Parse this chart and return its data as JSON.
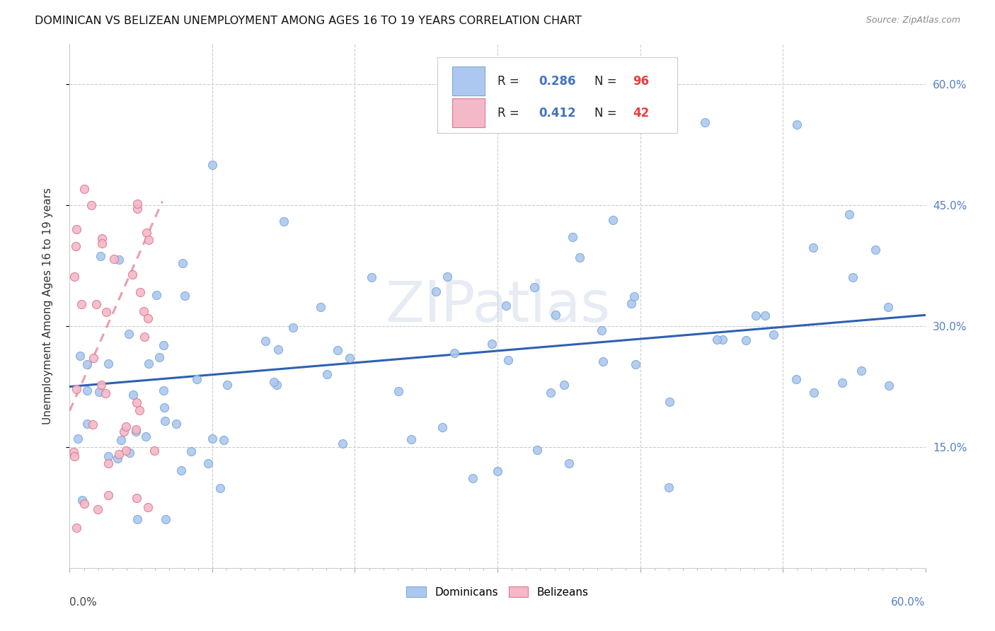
{
  "title": "DOMINICAN VS BELIZEAN UNEMPLOYMENT AMONG AGES 16 TO 19 YEARS CORRELATION CHART",
  "source": "Source: ZipAtlas.com",
  "ylabel": "Unemployment Among Ages 16 to 19 years",
  "xlim": [
    0.0,
    0.6
  ],
  "ylim": [
    0.0,
    0.65
  ],
  "yticks": [
    0.15,
    0.3,
    0.45,
    0.6
  ],
  "ytick_labels": [
    "15.0%",
    "30.0%",
    "45.0%",
    "60.0%"
  ],
  "dominican_color": "#adc8f0",
  "dominican_edge": "#7aaad4",
  "belizean_color": "#f5b8c8",
  "belizean_edge": "#d97a90",
  "trendline_dominican_color": "#3060b0",
  "trendline_belizean_color": "#e08090",
  "watermark": "ZIPatlas",
  "watermark_color": "#d0d8e8",
  "legend_r1": "0.286",
  "legend_n1": "96",
  "legend_r2": "0.412",
  "legend_n2": "42",
  "r_color": "#4472c4",
  "n_color": "#e84040",
  "dom_trend_intercept": 0.225,
  "dom_trend_slope": 0.148,
  "bel_trend_x0": 0.0,
  "bel_trend_x1": 0.065,
  "bel_trend_y0": 0.195,
  "bel_trend_y1": 0.455
}
